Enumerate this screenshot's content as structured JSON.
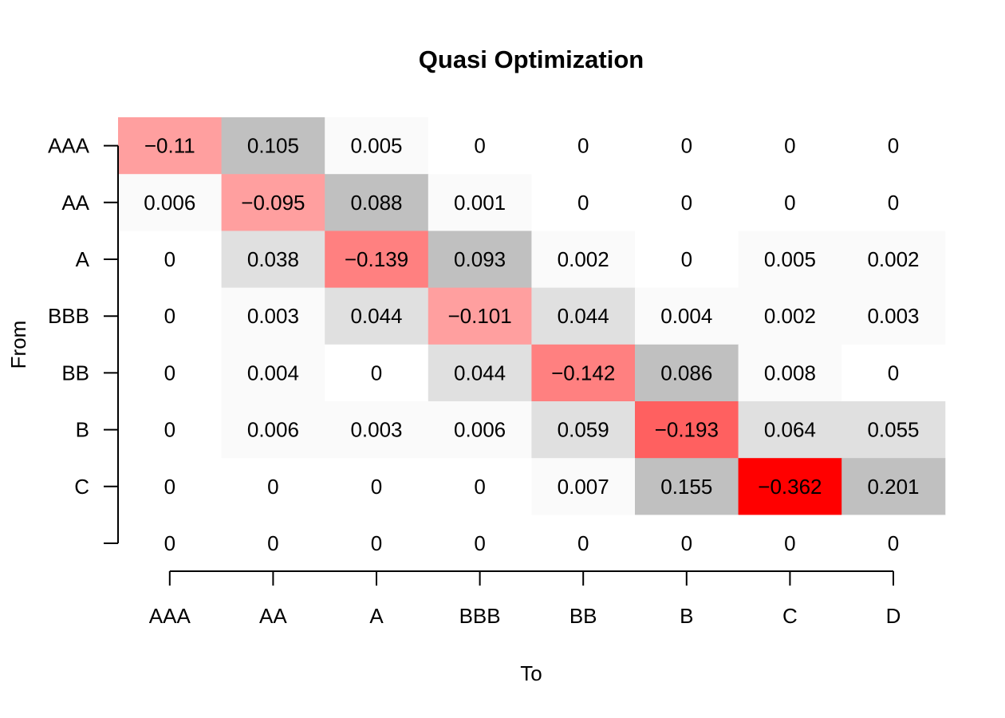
{
  "chart_data": {
    "type": "heatmap",
    "title": "Quasi Optimization",
    "xlabel": "To",
    "ylabel": "From",
    "x_categories": [
      "AAA",
      "AA",
      "A",
      "BBB",
      "BB",
      "B",
      "C",
      "D"
    ],
    "y_categories": [
      "AAA",
      "AA",
      "A",
      "BBB",
      "BB",
      "B",
      "C",
      ""
    ],
    "values": [
      [
        -0.11,
        0.105,
        0.005,
        0,
        0,
        0,
        0,
        0
      ],
      [
        0.006,
        -0.095,
        0.088,
        0.001,
        0,
        0,
        0,
        0
      ],
      [
        0,
        0.038,
        -0.139,
        0.093,
        0.002,
        0,
        0.005,
        0.002
      ],
      [
        0,
        0.003,
        0.044,
        -0.101,
        0.044,
        0.004,
        0.002,
        0.003
      ],
      [
        0,
        0.004,
        0,
        0.044,
        -0.142,
        0.086,
        0.008,
        0
      ],
      [
        0,
        0.006,
        0.003,
        0.006,
        0.059,
        -0.193,
        0.064,
        0.055
      ],
      [
        0,
        0,
        0,
        0,
        0.007,
        0.155,
        -0.362,
        0.201
      ],
      [
        0,
        0,
        0,
        0,
        0,
        0,
        0,
        0
      ]
    ],
    "cell_labels": [
      [
        "−0.11",
        "0.105",
        "0.005",
        "0",
        "0",
        "0",
        "0",
        "0"
      ],
      [
        "0.006",
        "−0.095",
        "0.088",
        "0.001",
        "0",
        "0",
        "0",
        "0"
      ],
      [
        "0",
        "0.038",
        "−0.139",
        "0.093",
        "0.002",
        "0",
        "0.005",
        "0.002"
      ],
      [
        "0",
        "0.003",
        "0.044",
        "−0.101",
        "0.044",
        "0.004",
        "0.002",
        "0.003"
      ],
      [
        "0",
        "0.004",
        "0",
        "0.044",
        "−0.142",
        "0.086",
        "0.008",
        "0"
      ],
      [
        "0",
        "0.006",
        "0.003",
        "0.006",
        "0.059",
        "−0.193",
        "0.064",
        "0.055"
      ],
      [
        "0",
        "0",
        "0",
        "0",
        "0.007",
        "0.155",
        "−0.362",
        "0.201"
      ],
      [
        "0",
        "0",
        "0",
        "0",
        "0",
        "0",
        "0",
        "0"
      ]
    ],
    "colors": {
      "negative_max": "#ff0000",
      "positive_max": "#c0c0c0",
      "zero": "#ffffff"
    },
    "grid": false,
    "legend": "none"
  }
}
